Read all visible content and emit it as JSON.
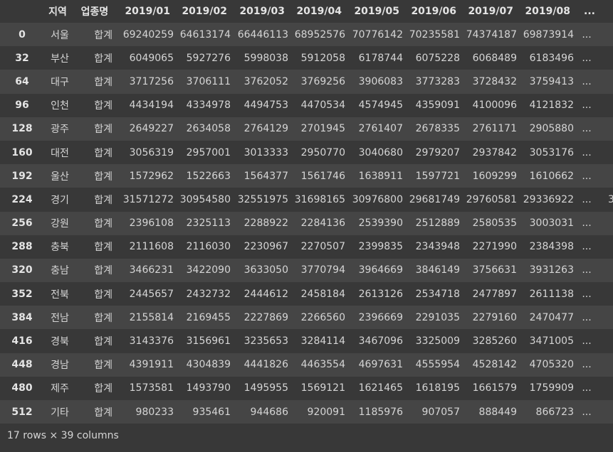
{
  "table": {
    "index_header": "",
    "columns": [
      "지역",
      "업종명",
      "2019/01",
      "2019/02",
      "2019/03",
      "2019/04",
      "2019/05",
      "2019/06",
      "2019/07",
      "2019/08"
    ],
    "ellipsis": "...",
    "rows": [
      {
        "index": "0",
        "region": "서울",
        "type": "합계",
        "values": [
          "69240259",
          "64613174",
          "66446113",
          "68952576",
          "70776142",
          "70235581",
          "74374187",
          "69873914"
        ],
        "clip": ""
      },
      {
        "index": "32",
        "region": "부산",
        "type": "합계",
        "values": [
          "6049065",
          "5927276",
          "5998038",
          "5912058",
          "6178744",
          "6075228",
          "6068489",
          "6183496"
        ],
        "clip": ""
      },
      {
        "index": "64",
        "region": "대구",
        "type": "합계",
        "values": [
          "3717256",
          "3706111",
          "3762052",
          "3769256",
          "3906083",
          "3773283",
          "3728432",
          "3759413"
        ],
        "clip": ""
      },
      {
        "index": "96",
        "region": "인천",
        "type": "합계",
        "values": [
          "4434194",
          "4334978",
          "4494753",
          "4470534",
          "4574945",
          "4359091",
          "4100096",
          "4121832"
        ],
        "clip": ""
      },
      {
        "index": "128",
        "region": "광주",
        "type": "합계",
        "values": [
          "2649227",
          "2634058",
          "2764129",
          "2701945",
          "2761407",
          "2678335",
          "2761171",
          "2905880"
        ],
        "clip": ""
      },
      {
        "index": "160",
        "region": "대전",
        "type": "합계",
        "values": [
          "3056319",
          "2957001",
          "3013333",
          "2950770",
          "3040680",
          "2979207",
          "2937842",
          "3053176"
        ],
        "clip": ""
      },
      {
        "index": "192",
        "region": "울산",
        "type": "합계",
        "values": [
          "1572962",
          "1522663",
          "1564377",
          "1561746",
          "1638911",
          "1597721",
          "1609299",
          "1610662"
        ],
        "clip": ""
      },
      {
        "index": "224",
        "region": "경기",
        "type": "합계",
        "values": [
          "31571272",
          "30954580",
          "32551975",
          "31698165",
          "30976800",
          "29681749",
          "29760581",
          "29336922"
        ],
        "clip": "3"
      },
      {
        "index": "256",
        "region": "강원",
        "type": "합계",
        "values": [
          "2396108",
          "2325113",
          "2288922",
          "2284136",
          "2539390",
          "2512889",
          "2580535",
          "3003031"
        ],
        "clip": ""
      },
      {
        "index": "288",
        "region": "충북",
        "type": "합계",
        "values": [
          "2111608",
          "2116030",
          "2230967",
          "2270507",
          "2399835",
          "2343948",
          "2271990",
          "2384398"
        ],
        "clip": ""
      },
      {
        "index": "320",
        "region": "충남",
        "type": "합계",
        "values": [
          "3466231",
          "3422090",
          "3633050",
          "3770794",
          "3964669",
          "3846149",
          "3756631",
          "3931263"
        ],
        "clip": ""
      },
      {
        "index": "352",
        "region": "전북",
        "type": "합계",
        "values": [
          "2445657",
          "2432732",
          "2444612",
          "2458184",
          "2613126",
          "2534718",
          "2477897",
          "2611138"
        ],
        "clip": ""
      },
      {
        "index": "384",
        "region": "전남",
        "type": "합계",
        "values": [
          "2155814",
          "2169455",
          "2227869",
          "2266560",
          "2396669",
          "2291035",
          "2279160",
          "2470477"
        ],
        "clip": ""
      },
      {
        "index": "416",
        "region": "경북",
        "type": "합계",
        "values": [
          "3143376",
          "3156961",
          "3235653",
          "3284114",
          "3467096",
          "3325009",
          "3285260",
          "3471005"
        ],
        "clip": ""
      },
      {
        "index": "448",
        "region": "경남",
        "type": "합계",
        "values": [
          "4391911",
          "4304839",
          "4441826",
          "4463554",
          "4697631",
          "4555954",
          "4528142",
          "4705320"
        ],
        "clip": ""
      },
      {
        "index": "480",
        "region": "제주",
        "type": "합계",
        "values": [
          "1573581",
          "1493790",
          "1495955",
          "1569121",
          "1621465",
          "1618195",
          "1661579",
          "1759909"
        ],
        "clip": ""
      },
      {
        "index": "512",
        "region": "기타",
        "type": "합계",
        "values": [
          "980233",
          "935461",
          "944686",
          "920091",
          "1185976",
          "907057",
          "888449",
          "866723"
        ],
        "clip": ""
      }
    ]
  },
  "footer": "17 rows × 39 columns",
  "colors": {
    "background": "#383838",
    "row_stripe": "#454545",
    "text": "#d5d5d5"
  }
}
